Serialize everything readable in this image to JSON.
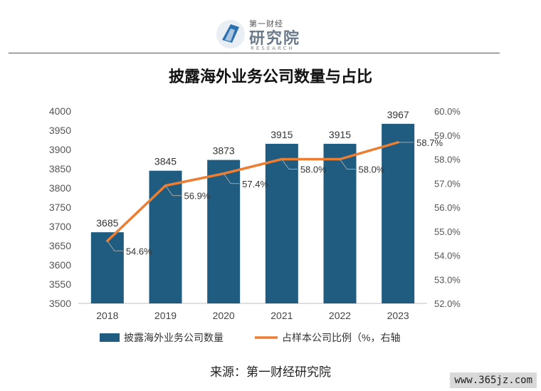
{
  "logo": {
    "line1": "第一财经",
    "line2": "研究院",
    "line3": "RESEARCH"
  },
  "source_label": "来源：第一财经研究院",
  "watermark": "www.365jz.com",
  "chart_data": {
    "type": "bar",
    "title": "披露海外业务公司数量与占比",
    "categories": [
      "2018",
      "2019",
      "2020",
      "2021",
      "2022",
      "2023"
    ],
    "series": [
      {
        "name": "披露海外业务公司数量",
        "type": "bar",
        "axis": "left",
        "values": [
          3685,
          3845,
          3873,
          3915,
          3915,
          3967
        ],
        "labels": [
          "3685",
          "3845",
          "3873",
          "3915",
          "3915",
          "3967"
        ],
        "color": "#1f5c7f"
      },
      {
        "name": "占样本公司比例（%，右轴",
        "type": "line",
        "axis": "right",
        "values": [
          54.6,
          56.9,
          57.4,
          58.0,
          58.0,
          58.7
        ],
        "labels": [
          "54.6%",
          "56.9%",
          "57.4%",
          "58.0%",
          "58.0%",
          "58.7%"
        ],
        "color": "#ed7d31"
      }
    ],
    "ylim_left": [
      3500,
      4000
    ],
    "yticks_left": [
      "3500",
      "3550",
      "3600",
      "3650",
      "3700",
      "3750",
      "3800",
      "3850",
      "3900",
      "3950",
      "4000"
    ],
    "ylim_right": [
      52.0,
      60.0
    ],
    "yticks_right": [
      "52.0%",
      "53.0%",
      "54.0%",
      "55.0%",
      "56.0%",
      "57.0%",
      "58.0%",
      "59.0%",
      "60.0%"
    ],
    "legend": "bottom",
    "grid": false
  }
}
